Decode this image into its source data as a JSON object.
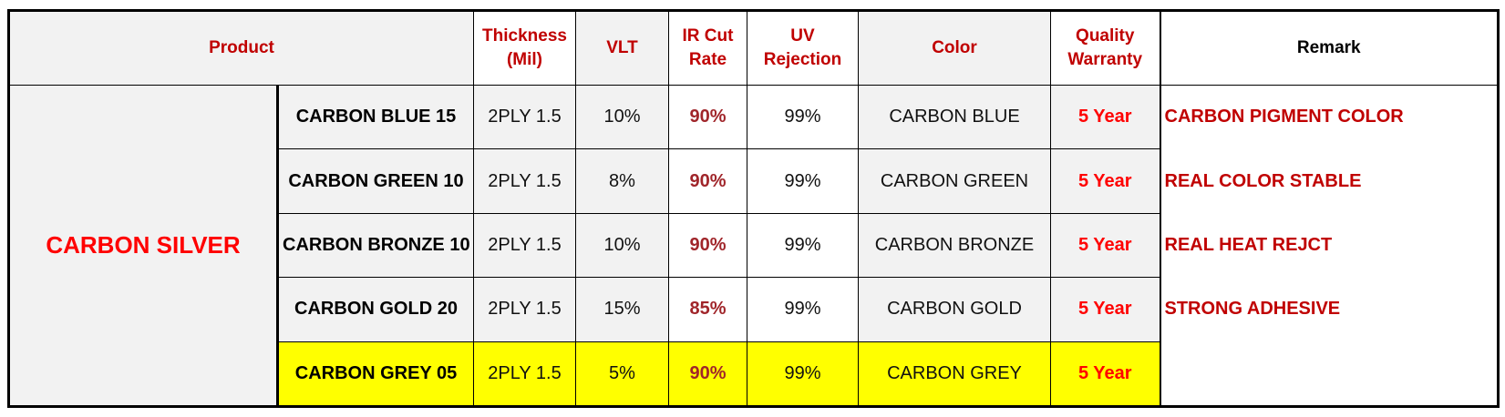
{
  "table": {
    "headers": {
      "product": "Product",
      "thickness_line1": "Thickness",
      "thickness_line2": "(Mil)",
      "vlt": "VLT",
      "ir_line1": "IR Cut",
      "ir_line2": "Rate",
      "uv_line1": "UV",
      "uv_line2": "Rejection",
      "color": "Color",
      "warranty_line1": "Quality",
      "warranty_line2": "Warranty",
      "remark": "Remark"
    },
    "group_label": "CARBON SILVER",
    "rows": [
      {
        "product": "CARBON BLUE 15",
        "thickness": "2PLY 1.5",
        "vlt": "10%",
        "ir": "90%",
        "uv": "99%",
        "color": "CARBON BLUE",
        "warranty": "5 Year",
        "remark": "CARBON PIGMENT COLOR"
      },
      {
        "product": "CARBON GREEN 10",
        "thickness": "2PLY 1.5",
        "vlt": "8%",
        "ir": "90%",
        "uv": "99%",
        "color": "CARBON GREEN",
        "warranty": "5 Year",
        "remark": "REAL COLOR STABLE"
      },
      {
        "product": "CARBON BRONZE 10",
        "thickness": "2PLY 1.5",
        "vlt": "10%",
        "ir": "90%",
        "uv": "99%",
        "color": "CARBON BRONZE",
        "warranty": "5 Year",
        "remark": "REAL HEAT REJCT"
      },
      {
        "product": "CARBON GOLD 20",
        "thickness": "2PLY 1.5",
        "vlt": "15%",
        "ir": "85%",
        "uv": "99%",
        "color": "CARBON GOLD",
        "warranty": "5 Year",
        "remark": "STRONG ADHESIVE"
      },
      {
        "product": "CARBON GREY 05",
        "thickness": "2PLY 1.5",
        "vlt": "5%",
        "ir": "90%",
        "uv": "99%",
        "color": "CARBON GREY",
        "warranty": "5 Year",
        "remark": ""
      }
    ],
    "colors": {
      "header_text": "#c00000",
      "group_text": "#ff0000",
      "warranty_text": "#ff0000",
      "remark_text": "#c00000",
      "ir_text": "#a0252a",
      "highlight_row": "#ffff00",
      "cell_bg": "#f2f2f2"
    }
  }
}
